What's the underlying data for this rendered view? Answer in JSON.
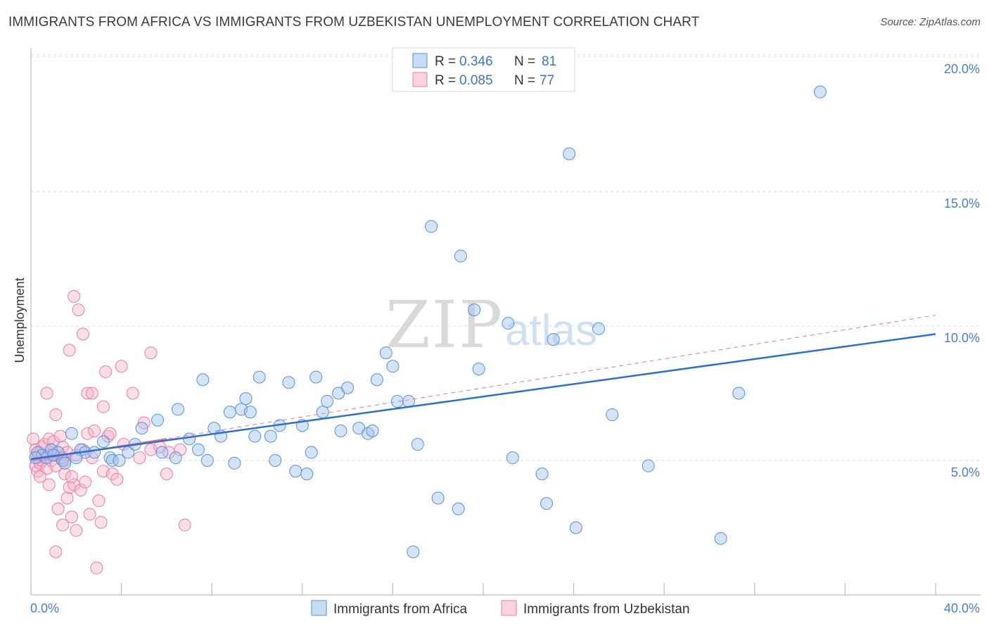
{
  "title": "IMMIGRANTS FROM AFRICA VS IMMIGRANTS FROM UZBEKISTAN UNEMPLOYMENT CORRELATION CHART",
  "source": "Source: ZipAtlas.com",
  "watermark": {
    "zip": "ZIP",
    "atlas": "atlas"
  },
  "colors": {
    "africa_fill": "rgba(160,196,240,0.45)",
    "africa_stroke": "#5b8fd6",
    "africa_line": "#2f6fcc",
    "uzbek_fill": "rgba(248,182,204,0.45)",
    "uzbek_stroke": "#e77fa3",
    "uzbek_line": "#e07aa0"
  },
  "legend": {
    "africa": {
      "r_label": "R = ",
      "r_value": "0.346",
      "n_label": "N = ",
      "n_value": "81"
    },
    "uzbek": {
      "r_label": "R = ",
      "r_value": "0.085",
      "n_label": "N = ",
      "n_value": "77"
    }
  },
  "chart_data": {
    "type": "scatter",
    "title": "IMMIGRANTS FROM AFRICA VS IMMIGRANTS FROM UZBEKISTAN UNEMPLOYMENT CORRELATION CHART",
    "xlabel": "",
    "ylabel": "Unemployment",
    "xlim": [
      0,
      40
    ],
    "ylim": [
      0,
      20.5
    ],
    "x_tick_labels": [
      "0.0%",
      "40.0%"
    ],
    "y_ticks": [
      5,
      10,
      15,
      20
    ],
    "y_tick_labels": [
      "5.0%",
      "10.0%",
      "15.0%",
      "20.0%"
    ],
    "grid": true,
    "legend_position": "top-center",
    "series": [
      {
        "name": "Immigrants from Africa",
        "trend": {
          "x": [
            0,
            40
          ],
          "y": [
            5.05,
            9.7
          ],
          "style": "solid"
        },
        "points": [
          [
            0.3,
            5.3
          ],
          [
            0.5,
            5.2
          ],
          [
            0.7,
            5.1
          ],
          [
            0.9,
            5.4
          ],
          [
            1.2,
            5.3
          ],
          [
            1.4,
            5.0
          ],
          [
            1.5,
            4.9
          ],
          [
            1.8,
            6.0
          ],
          [
            2.2,
            5.4
          ],
          [
            2.4,
            5.3
          ],
          [
            2.8,
            5.3
          ],
          [
            3.2,
            5.7
          ],
          [
            3.5,
            5.1
          ],
          [
            3.6,
            5.0
          ],
          [
            3.9,
            5.0
          ],
          [
            4.3,
            5.3
          ],
          [
            4.6,
            5.6
          ],
          [
            4.9,
            6.2
          ],
          [
            5.6,
            6.5
          ],
          [
            5.8,
            5.3
          ],
          [
            6.4,
            5.1
          ],
          [
            6.5,
            6.9
          ],
          [
            7.0,
            5.8
          ],
          [
            7.4,
            5.4
          ],
          [
            7.6,
            8.0
          ],
          [
            7.8,
            5.0
          ],
          [
            8.1,
            6.2
          ],
          [
            8.4,
            5.9
          ],
          [
            8.8,
            6.8
          ],
          [
            9.0,
            4.9
          ],
          [
            9.3,
            6.9
          ],
          [
            9.5,
            7.3
          ],
          [
            9.7,
            6.8
          ],
          [
            9.9,
            5.9
          ],
          [
            10.1,
            8.1
          ],
          [
            10.6,
            5.9
          ],
          [
            10.8,
            5.0
          ],
          [
            11.0,
            6.3
          ],
          [
            11.4,
            7.9
          ],
          [
            11.7,
            4.6
          ],
          [
            12.0,
            6.3
          ],
          [
            12.2,
            4.5
          ],
          [
            12.4,
            5.3
          ],
          [
            12.6,
            8.1
          ],
          [
            12.9,
            6.8
          ],
          [
            13.1,
            7.2
          ],
          [
            13.6,
            7.5
          ],
          [
            13.7,
            6.1
          ],
          [
            14.0,
            7.7
          ],
          [
            14.5,
            6.2
          ],
          [
            14.9,
            6.0
          ],
          [
            15.1,
            6.1
          ],
          [
            15.3,
            8.0
          ],
          [
            15.7,
            9.0
          ],
          [
            16.0,
            8.5
          ],
          [
            16.2,
            7.2
          ],
          [
            16.7,
            7.2
          ],
          [
            16.9,
            1.6
          ],
          [
            17.1,
            5.6
          ],
          [
            17.7,
            13.7
          ],
          [
            18.0,
            3.6
          ],
          [
            18.9,
            3.2
          ],
          [
            19.0,
            12.6
          ],
          [
            19.6,
            10.6
          ],
          [
            19.8,
            8.4
          ],
          [
            21.1,
            10.1
          ],
          [
            21.3,
            5.1
          ],
          [
            22.6,
            4.5
          ],
          [
            22.8,
            3.4
          ],
          [
            23.1,
            9.5
          ],
          [
            23.8,
            16.4
          ],
          [
            24.1,
            2.5
          ],
          [
            25.1,
            9.9
          ],
          [
            25.7,
            6.7
          ],
          [
            27.3,
            4.8
          ],
          [
            30.5,
            2.1
          ],
          [
            31.3,
            7.5
          ],
          [
            34.9,
            18.7
          ],
          [
            1.0,
            5.2
          ],
          [
            2.0,
            5.1
          ],
          [
            0.2,
            5.1
          ]
        ]
      },
      {
        "name": "Immigrants from Uzbekistan",
        "trend": {
          "x": [
            0,
            40
          ],
          "y": [
            5.0,
            10.4
          ],
          "style": "dashed",
          "solid_x": [
            0,
            6.0
          ]
        },
        "points": [
          [
            0.1,
            5.8
          ],
          [
            0.2,
            5.4
          ],
          [
            0.2,
            4.8
          ],
          [
            0.3,
            5.1
          ],
          [
            0.3,
            4.6
          ],
          [
            0.4,
            5.3
          ],
          [
            0.4,
            4.9
          ],
          [
            0.5,
            5.5
          ],
          [
            0.5,
            5.0
          ],
          [
            0.6,
            5.6
          ],
          [
            0.6,
            5.1
          ],
          [
            0.7,
            4.7
          ],
          [
            0.7,
            7.5
          ],
          [
            0.8,
            5.8
          ],
          [
            0.8,
            5.2
          ],
          [
            0.8,
            4.1
          ],
          [
            0.9,
            5.4
          ],
          [
            0.9,
            5.0
          ],
          [
            1.0,
            5.7
          ],
          [
            1.0,
            5.2
          ],
          [
            1.1,
            6.7
          ],
          [
            1.1,
            4.8
          ],
          [
            1.2,
            5.3
          ],
          [
            1.2,
            3.2
          ],
          [
            1.3,
            5.9
          ],
          [
            1.3,
            5.1
          ],
          [
            1.4,
            2.6
          ],
          [
            1.4,
            5.5
          ],
          [
            1.5,
            4.5
          ],
          [
            1.5,
            5.0
          ],
          [
            1.6,
            3.6
          ],
          [
            1.6,
            5.3
          ],
          [
            1.7,
            9.1
          ],
          [
            1.7,
            4.0
          ],
          [
            1.8,
            2.9
          ],
          [
            1.9,
            4.1
          ],
          [
            1.9,
            11.1
          ],
          [
            2.0,
            2.4
          ],
          [
            2.0,
            5.2
          ],
          [
            2.1,
            10.6
          ],
          [
            2.2,
            3.9
          ],
          [
            2.3,
            9.7
          ],
          [
            2.3,
            5.4
          ],
          [
            2.4,
            4.2
          ],
          [
            2.5,
            6.0
          ],
          [
            2.5,
            7.5
          ],
          [
            2.6,
            3.0
          ],
          [
            2.7,
            5.1
          ],
          [
            2.7,
            7.5
          ],
          [
            2.8,
            6.1
          ],
          [
            2.9,
            1.0
          ],
          [
            3.0,
            3.5
          ],
          [
            3.1,
            2.7
          ],
          [
            3.2,
            4.6
          ],
          [
            3.2,
            7.0
          ],
          [
            3.3,
            8.3
          ],
          [
            3.4,
            5.9
          ],
          [
            3.5,
            6.0
          ],
          [
            3.6,
            4.5
          ],
          [
            3.8,
            4.3
          ],
          [
            4.0,
            8.5
          ],
          [
            4.1,
            5.6
          ],
          [
            4.5,
            7.5
          ],
          [
            4.8,
            5.1
          ],
          [
            5.0,
            6.4
          ],
          [
            5.3,
            5.4
          ],
          [
            5.3,
            9.0
          ],
          [
            5.7,
            5.5
          ],
          [
            6.0,
            4.5
          ],
          [
            6.1,
            5.3
          ],
          [
            6.6,
            5.4
          ],
          [
            6.8,
            2.6
          ],
          [
            1.1,
            1.6
          ],
          [
            0.9,
            5.2
          ],
          [
            1.4,
            5.1
          ],
          [
            1.8,
            4.4
          ],
          [
            0.4,
            4.4
          ]
        ]
      }
    ]
  },
  "bottom_legend": {
    "africa": "Immigrants from Africa",
    "uzbek": "Immigrants from Uzbekistan"
  }
}
